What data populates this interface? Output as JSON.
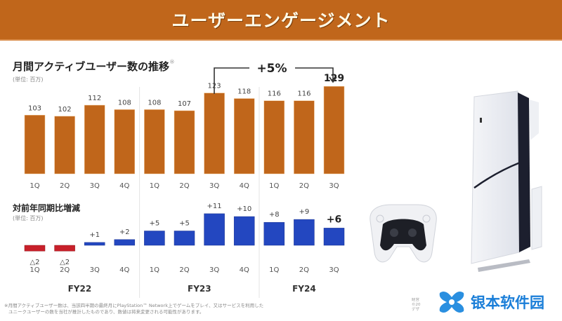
{
  "header": {
    "title": "ユーザーエンゲージメント"
  },
  "top_section": {
    "title": "月間アクティブユーザー数の推移",
    "note_mark": "※",
    "unit": "(単位: 百万)"
  },
  "bottom_section": {
    "title": "対前年同期比増減",
    "unit": "(単位: 百万)"
  },
  "growth_callout": {
    "label": "+5%"
  },
  "colors": {
    "header": "#C0661B",
    "mau_bar": "#C0661B",
    "positive_bar": "#2347C0",
    "negative_bar": "#C8202A"
  },
  "chart_data": [
    {
      "type": "bar",
      "title": "月間アクティブユーザー数の推移",
      "unit": "(単位: 百万)",
      "categories": [
        "1Q",
        "2Q",
        "3Q",
        "4Q",
        "1Q",
        "2Q",
        "3Q",
        "4Q",
        "1Q",
        "2Q",
        "3Q"
      ],
      "values": [
        103,
        102,
        112,
        108,
        108,
        107,
        123,
        118,
        116,
        116,
        129
      ],
      "value_labels": [
        "103",
        "102",
        "112",
        "108",
        "108",
        "107",
        "123",
        "118",
        "116",
        "116",
        "129"
      ],
      "groups": [
        "FY22",
        "FY23",
        "FY24"
      ],
      "group_sizes": [
        4,
        4,
        3
      ],
      "highlight_last": true,
      "ylim": [
        0,
        135
      ]
    },
    {
      "type": "bar",
      "title": "対前年同期比増減",
      "unit": "(単位: 百万)",
      "categories": [
        "1Q",
        "2Q",
        "3Q",
        "4Q",
        "1Q",
        "2Q",
        "3Q",
        "4Q",
        "1Q",
        "2Q",
        "3Q"
      ],
      "values": [
        -2,
        -2,
        1,
        2,
        5,
        5,
        11,
        10,
        8,
        9,
        6
      ],
      "value_labels": [
        "△2",
        "△2",
        "+1",
        "+2",
        "+5",
        "+5",
        "+11",
        "+10",
        "+8",
        "+9",
        "+6"
      ],
      "groups": [
        "FY22",
        "FY23",
        "FY24"
      ],
      "group_sizes": [
        4,
        4,
        3
      ],
      "highlight_last": true
    }
  ],
  "footnote": {
    "line1": "※月間アクティブユーザー数は、当該四半期の最終月にPlayStation™ Network上でゲームをプレイ、又はサービスを利用した",
    "line2": "ユニークユーザーの数を当社が推計したものであり、数値は将来変更される可能性があります。"
  },
  "credit": {
    "line1": "経営",
    "line2": "©20",
    "line3": "デザ"
  },
  "watermark": {
    "text": "银本软件园"
  }
}
